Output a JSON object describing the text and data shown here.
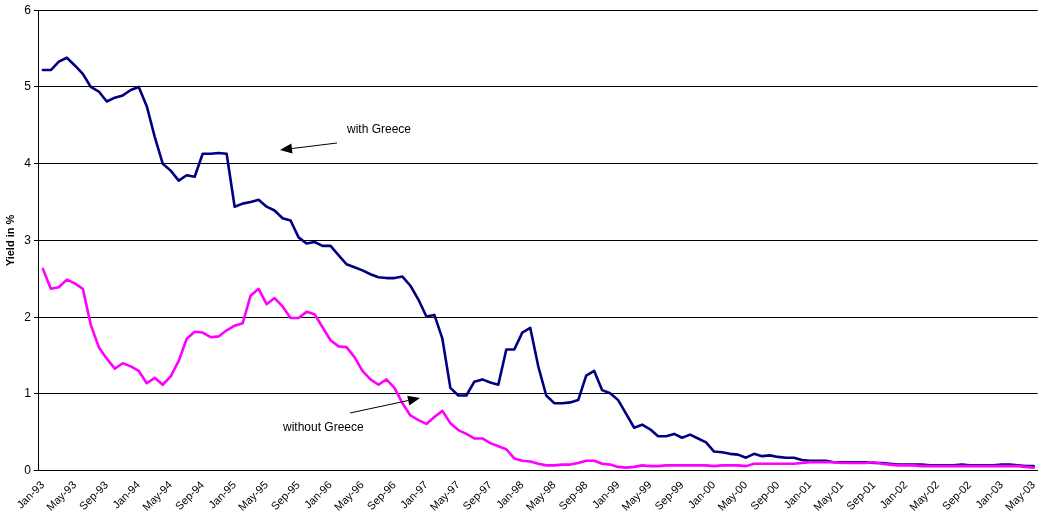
{
  "chart_data": {
    "type": "line",
    "ylabel": "Yield in %",
    "categories": [
      "Jan-93",
      null,
      null,
      null,
      "May-93",
      null,
      null,
      null,
      "Sep-93",
      null,
      null,
      null,
      "Jan-94",
      null,
      null,
      null,
      "May-94",
      null,
      null,
      null,
      "Sep-94",
      null,
      null,
      null,
      "Jan-95",
      null,
      null,
      null,
      "May-95",
      null,
      null,
      null,
      "Sep-95",
      null,
      null,
      null,
      "Jan-96",
      null,
      null,
      null,
      "May-96",
      null,
      null,
      null,
      "Sep-96",
      null,
      null,
      null,
      "Jan-97",
      null,
      null,
      null,
      "May-97",
      null,
      null,
      null,
      "Sep-97",
      null,
      null,
      null,
      "Jan-98",
      null,
      null,
      null,
      "May-98",
      null,
      null,
      null,
      "Sep-98",
      null,
      null,
      null,
      "Jan-99",
      null,
      null,
      null,
      "May-99",
      null,
      null,
      null,
      "Sep-99",
      null,
      null,
      null,
      "Jan-00",
      null,
      null,
      null,
      "May-00",
      null,
      null,
      null,
      "Sep-00",
      null,
      null,
      null,
      "Jan-01",
      null,
      null,
      null,
      "May-01",
      null,
      null,
      null,
      "Sep-01",
      null,
      null,
      null,
      "Jan-02",
      null,
      null,
      null,
      "May-02",
      null,
      null,
      null,
      "Sep-02",
      null,
      null,
      null,
      "Jan-03",
      null,
      null,
      null,
      "May-03"
    ],
    "series": [
      {
        "color": "#000080",
        "values": [
          5.22,
          5.22,
          5.33,
          5.38,
          5.28,
          5.17,
          5.0,
          4.94,
          4.81,
          4.86,
          4.89,
          4.96,
          5.0,
          4.75,
          4.35,
          4.0,
          3.91,
          3.78,
          3.85,
          3.83,
          4.13,
          4.13,
          4.14,
          4.13,
          3.44,
          3.48,
          3.5,
          3.53,
          3.44,
          3.39,
          3.29,
          3.26,
          3.04,
          2.96,
          2.98,
          2.93,
          2.93,
          2.81,
          2.69,
          2.65,
          2.61,
          2.56,
          2.52,
          2.51,
          2.51,
          2.53,
          2.41,
          2.23,
          2.01,
          2.03,
          1.72,
          1.08,
          0.98,
          0.98,
          1.16,
          1.19,
          1.15,
          1.12,
          1.58,
          1.58,
          1.8,
          1.86,
          1.36,
          0.98,
          0.88,
          0.88,
          0.89,
          0.92,
          1.24,
          1.3,
          1.05,
          1.01,
          0.92,
          0.74,
          0.56,
          0.6,
          0.54,
          0.45,
          0.45,
          0.48,
          0.43,
          0.47,
          0.42,
          0.37,
          0.25,
          0.24,
          0.22,
          0.21,
          0.17,
          0.22,
          0.19,
          0.2,
          0.18,
          0.17,
          0.17,
          0.14,
          0.13,
          0.13,
          0.13,
          0.11,
          0.11,
          0.11,
          0.11,
          0.11,
          0.1,
          0.1,
          0.09,
          0.08,
          0.08,
          0.08,
          0.08,
          0.07,
          0.07,
          0.07,
          0.07,
          0.08,
          0.07,
          0.07,
          0.07,
          0.07,
          0.08,
          0.08,
          0.07,
          0.06,
          0.06
        ]
      },
      {
        "color": "#ff00ff",
        "values": [
          2.63,
          2.37,
          2.39,
          2.49,
          2.44,
          2.37,
          1.9,
          1.61,
          1.46,
          1.33,
          1.4,
          1.36,
          1.3,
          1.14,
          1.21,
          1.12,
          1.23,
          1.43,
          1.72,
          1.81,
          1.8,
          1.74,
          1.75,
          1.83,
          1.89,
          1.92,
          2.28,
          2.37,
          2.17,
          2.25,
          2.14,
          1.99,
          1.99,
          2.07,
          2.04,
          1.87,
          1.7,
          1.62,
          1.61,
          1.48,
          1.3,
          1.19,
          1.12,
          1.19,
          1.08,
          0.88,
          0.72,
          0.66,
          0.61,
          0.7,
          0.78,
          0.62,
          0.53,
          0.48,
          0.42,
          0.42,
          0.36,
          0.32,
          0.28,
          0.16,
          0.13,
          0.12,
          0.09,
          0.07,
          0.07,
          0.08,
          0.08,
          0.1,
          0.13,
          0.13,
          0.09,
          0.08,
          0.05,
          0.04,
          0.05,
          0.07,
          0.06,
          0.06,
          0.07,
          0.07,
          0.07,
          0.07,
          0.07,
          0.07,
          0.06,
          0.07,
          0.07,
          0.07,
          0.06,
          0.09,
          0.09,
          0.09,
          0.09,
          0.09,
          0.09,
          0.1,
          0.11,
          0.11,
          0.11,
          0.11,
          0.1,
          0.1,
          0.1,
          0.1,
          0.11,
          0.09,
          0.08,
          0.07,
          0.07,
          0.07,
          0.06,
          0.06,
          0.06,
          0.06,
          0.06,
          0.06,
          0.06,
          0.06,
          0.06,
          0.06,
          0.06,
          0.06,
          0.06,
          0.05,
          0.04
        ]
      }
    ],
    "ylim": [
      0,
      6
    ],
    "yticks": [
      0,
      1,
      2,
      3,
      4,
      5,
      6
    ],
    "grid": "y",
    "legend": false,
    "marker": "none",
    "line_style": "solid",
    "annotations": [
      "with Greece",
      "without Greece"
    ]
  }
}
